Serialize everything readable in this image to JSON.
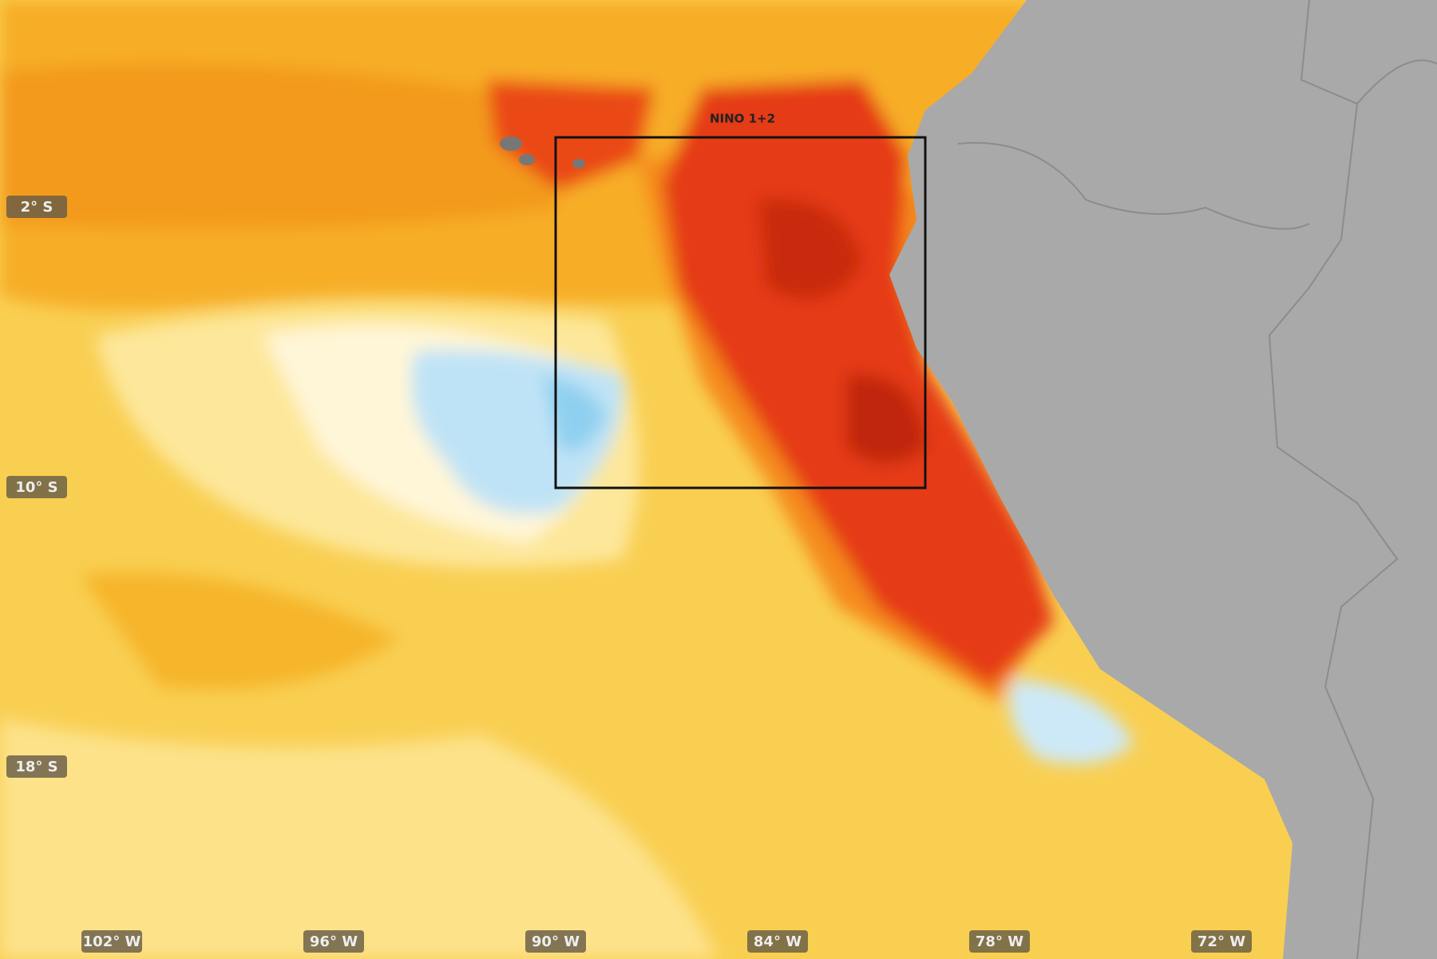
{
  "map": {
    "lat_labels": [
      "2° S",
      "10° S",
      "18° S"
    ],
    "lon_labels": [
      "102° W",
      "96° W",
      "90° W",
      "84° W",
      "78° W",
      "72° W"
    ],
    "region_label": "NINO 1+2"
  }
}
